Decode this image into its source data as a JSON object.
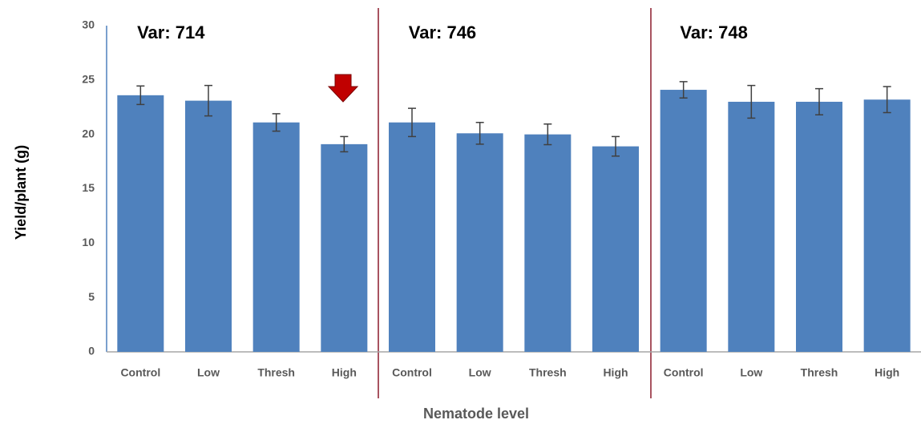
{
  "chart_data": {
    "type": "bar",
    "x_label": "Nematode level",
    "y_label": "Yield/plant (g)",
    "categories": [
      "Control",
      "Low",
      "Thresh",
      "High",
      "Control",
      "Low",
      "Thresh",
      "High",
      "Control",
      "Low",
      "Thresh",
      "High"
    ],
    "values": [
      23.6,
      23.1,
      21.1,
      19.1,
      21.1,
      20.1,
      20.0,
      18.9,
      24.1,
      23.0,
      23.0,
      23.2
    ],
    "errors": [
      0.85,
      1.4,
      0.8,
      0.7,
      1.3,
      1.0,
      0.95,
      0.9,
      0.75,
      1.5,
      1.2,
      1.2
    ],
    "color": "#4f81bd",
    "annotations": [
      "Var: 714",
      "Var: 746",
      "Var: 748"
    ],
    "ylim": [
      0,
      30
    ],
    "yticks": [
      0,
      5,
      10,
      15,
      20,
      25,
      30
    ],
    "grid": false
  }
}
